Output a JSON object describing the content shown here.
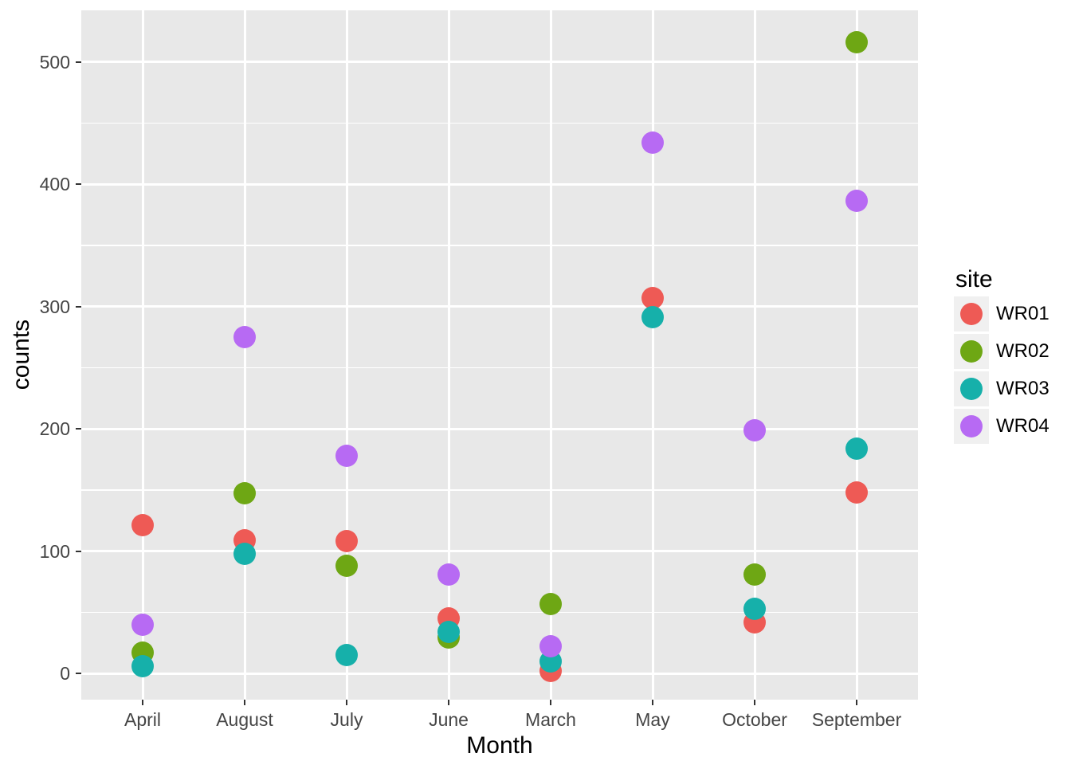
{
  "chart_data": {
    "type": "scatter",
    "title": "",
    "xlabel": "Month",
    "ylabel": "counts",
    "categories": [
      "April",
      "August",
      "July",
      "June",
      "March",
      "May",
      "October",
      "September"
    ],
    "y_ticks": [
      "0",
      "100",
      "200",
      "300",
      "400",
      "500"
    ],
    "y_minor_ticks": [
      50,
      150,
      250,
      350,
      450
    ],
    "ylim": [
      -22,
      542
    ],
    "grid": "white major and minor horizontal gridlines, white major vertical gridlines on gray panel",
    "legend": {
      "title": "site",
      "position": "right"
    },
    "series": [
      {
        "name": "WR01",
        "color": "#EE5A55",
        "values": [
          121,
          109,
          108,
          45,
          2,
          307,
          42,
          148
        ]
      },
      {
        "name": "WR02",
        "color": "#6EA714",
        "values": [
          17,
          147,
          88,
          29,
          57,
          null,
          81,
          516
        ]
      },
      {
        "name": "WR03",
        "color": "#16B0AA",
        "values": [
          6,
          98,
          15,
          34,
          10,
          291,
          53,
          184
        ]
      },
      {
        "name": "WR04",
        "color": "#B76AF3",
        "values": [
          40,
          275,
          178,
          81,
          22,
          434,
          199,
          386
        ]
      }
    ]
  },
  "colors": {
    "panel_background": "#E8E8E8",
    "gridline": "#FFFFFF",
    "tick_label": "#454545",
    "tick_mark": "#333333",
    "axis_title": "#000000",
    "legend_key_background": "#F0F0F0"
  }
}
